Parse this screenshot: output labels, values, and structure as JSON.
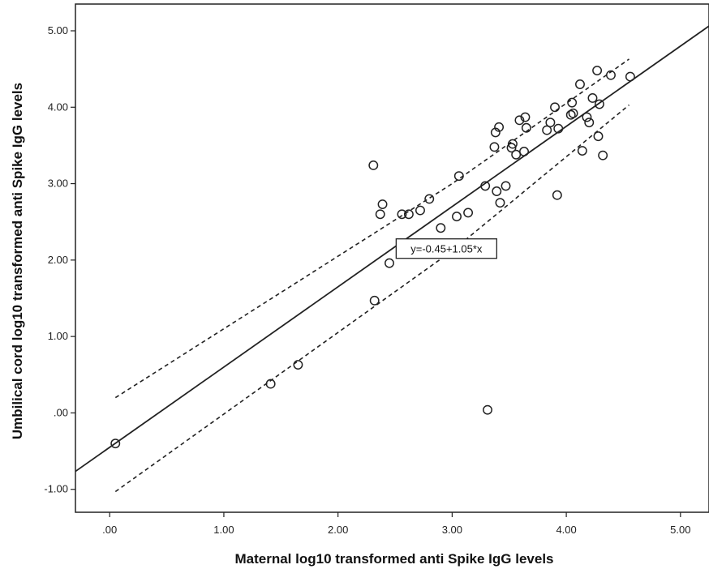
{
  "chart_data": {
    "type": "scatter",
    "title": "",
    "xlabel": "Maternal log10 transformed anti Spike IgG levels",
    "ylabel": "Umbilical cord log10 transformed anti Spike IgG levels",
    "xlim": [
      -0.3,
      5.25
    ],
    "ylim": [
      -1.3,
      5.35
    ],
    "x_ticks": [
      0,
      1,
      2,
      3,
      4,
      5
    ],
    "x_tick_labels": [
      ".00",
      "1.00",
      "2.00",
      "3.00",
      "4.00",
      "5.00"
    ],
    "y_ticks": [
      -1,
      0,
      1,
      2,
      3,
      4,
      5
    ],
    "y_tick_labels": [
      "-1.00",
      ".00",
      "1.00",
      "2.00",
      "3.00",
      "4.00",
      "5.00"
    ],
    "grid": false,
    "legend": "none",
    "marker": "open-circle",
    "points": [
      [
        0.05,
        -0.4
      ],
      [
        1.41,
        0.38
      ],
      [
        1.65,
        0.63
      ],
      [
        2.31,
        3.24
      ],
      [
        2.32,
        1.47
      ],
      [
        2.37,
        2.6
      ],
      [
        2.39,
        2.73
      ],
      [
        2.45,
        1.96
      ],
      [
        2.56,
        2.6
      ],
      [
        2.62,
        2.6
      ],
      [
        2.72,
        2.65
      ],
      [
        2.8,
        2.8
      ],
      [
        2.9,
        2.42
      ],
      [
        2.95,
        2.12
      ],
      [
        3.04,
        2.57
      ],
      [
        3.06,
        3.1
      ],
      [
        3.14,
        2.62
      ],
      [
        3.29,
        2.97
      ],
      [
        3.31,
        0.04
      ],
      [
        3.37,
        3.48
      ],
      [
        3.38,
        3.67
      ],
      [
        3.39,
        2.9
      ],
      [
        3.41,
        3.74
      ],
      [
        3.42,
        2.75
      ],
      [
        3.47,
        2.97
      ],
      [
        3.52,
        3.47
      ],
      [
        3.53,
        3.52
      ],
      [
        3.56,
        3.38
      ],
      [
        3.59,
        3.83
      ],
      [
        3.63,
        3.42
      ],
      [
        3.64,
        3.87
      ],
      [
        3.65,
        3.73
      ],
      [
        3.83,
        3.7
      ],
      [
        3.86,
        3.8
      ],
      [
        3.9,
        4.0
      ],
      [
        3.92,
        2.85
      ],
      [
        3.93,
        3.72
      ],
      [
        4.04,
        3.9
      ],
      [
        4.05,
        4.06
      ],
      [
        4.06,
        3.92
      ],
      [
        4.12,
        4.3
      ],
      [
        4.14,
        3.43
      ],
      [
        4.18,
        3.87
      ],
      [
        4.2,
        3.8
      ],
      [
        4.23,
        4.12
      ],
      [
        4.27,
        4.48
      ],
      [
        4.28,
        3.62
      ],
      [
        4.29,
        4.04
      ],
      [
        4.32,
        3.37
      ],
      [
        4.39,
        4.42
      ],
      [
        4.56,
        4.4
      ]
    ],
    "fit_line": {
      "intercept": -0.45,
      "slope": 1.05,
      "x_range": [
        -0.3,
        5.25
      ]
    },
    "ci_upper": [
      [
        0.05,
        0.2
      ],
      [
        3.0,
        3.0
      ],
      [
        4.55,
        4.63
      ]
    ],
    "ci_lower": [
      [
        0.05,
        -1.03
      ],
      [
        3.0,
        2.12
      ],
      [
        4.55,
        4.03
      ]
    ],
    "annotation": {
      "text": "y=-0.45+1.05*x",
      "x": 2.95,
      "y": 2.15
    }
  }
}
